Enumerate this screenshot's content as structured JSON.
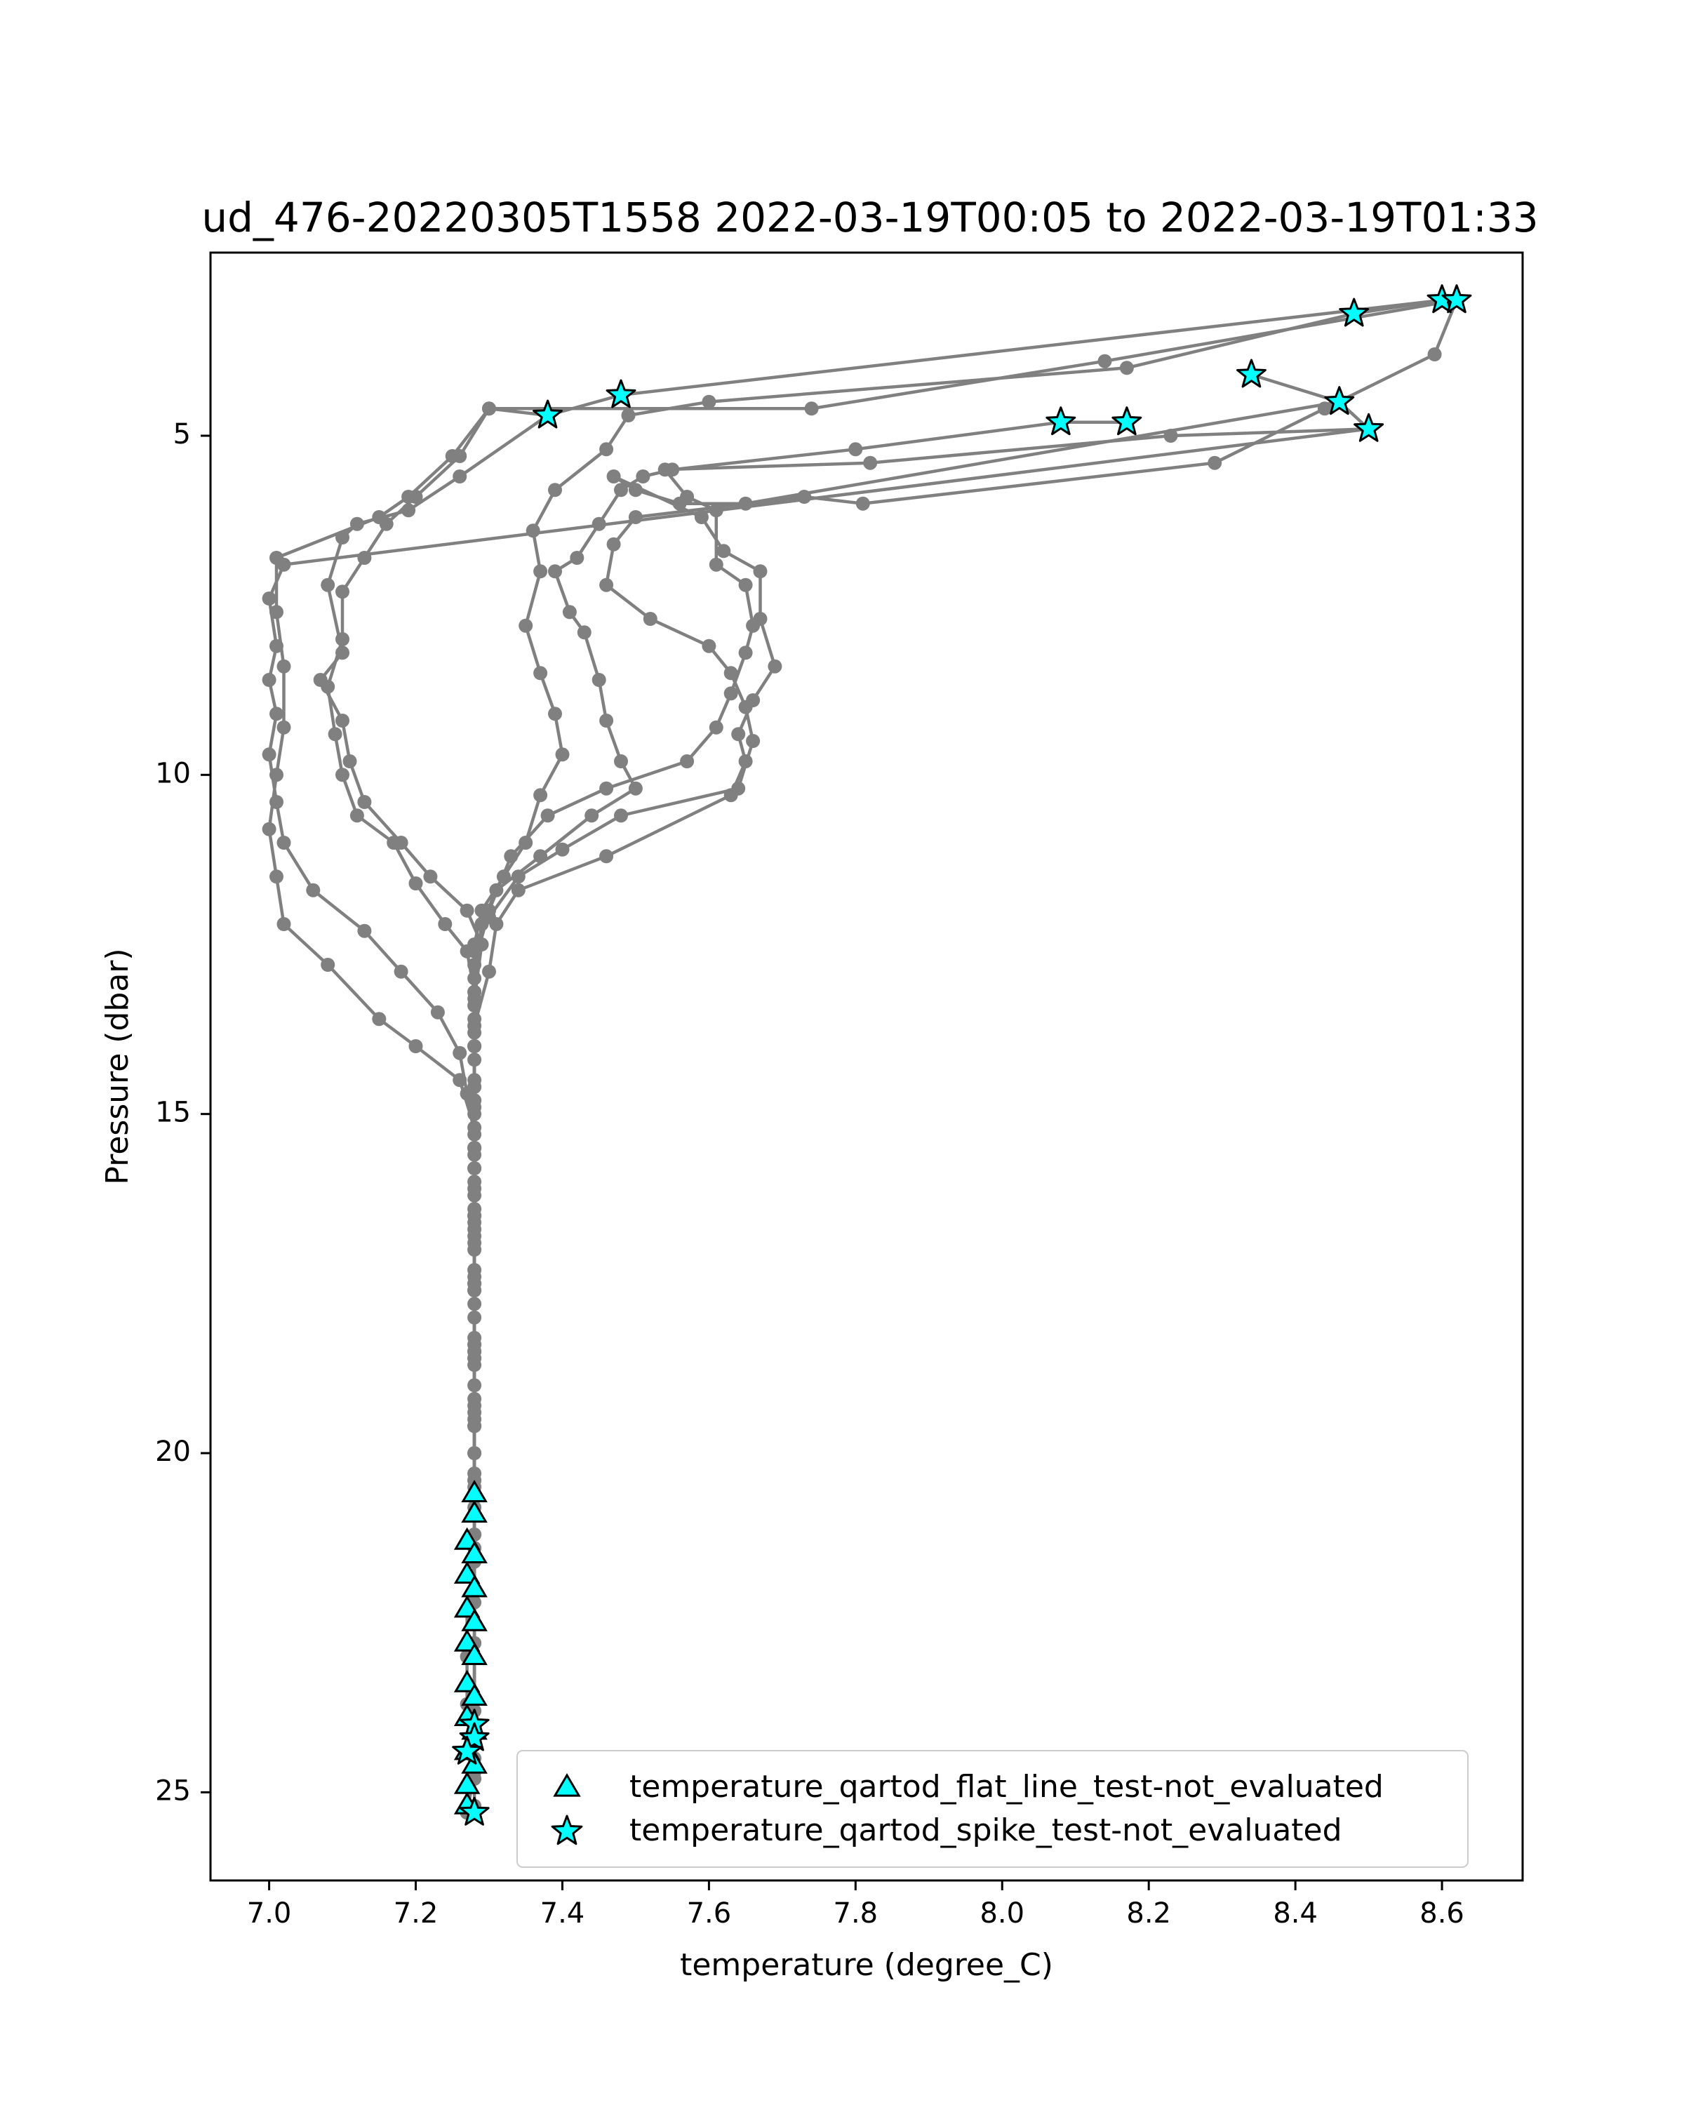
{
  "chart_data": {
    "type": "scatter",
    "title": "ud_476-20220305T1558 2022-03-19T00:05 to 2022-03-19T01:33",
    "xlabel": "temperature (degree_C)",
    "ylabel": "Pressure (dbar)",
    "xlim": [
      6.92,
      8.71
    ],
    "ylim": [
      26.3,
      2.3
    ],
    "y_inverted": true,
    "xticks": [
      7.0,
      7.2,
      7.4,
      7.6,
      7.8,
      8.0,
      8.2,
      8.4,
      8.6
    ],
    "xtick_labels": [
      "7.0",
      "7.2",
      "7.4",
      "7.6",
      "7.8",
      "8.0",
      "8.2",
      "8.4",
      "8.6"
    ],
    "yticks": [
      5,
      10,
      15,
      20,
      25
    ],
    "ytick_labels": [
      "5",
      "10",
      "15",
      "20",
      "25"
    ],
    "grid": false,
    "legend_position": "lower-right",
    "colors": {
      "profile": "#808080",
      "flag_fill": "#00ffff",
      "flag_edge": "#000000"
    },
    "profiles": [
      {
        "points": [
          [
            8.62,
            3.0
          ],
          [
            8.14,
            3.9
          ],
          [
            7.74,
            4.6
          ],
          [
            7.3,
            4.6
          ],
          [
            7.26,
            5.3
          ],
          [
            7.2,
            5.9
          ],
          [
            7.16,
            6.3
          ],
          [
            7.13,
            6.8
          ],
          [
            7.1,
            7.3
          ],
          [
            7.1,
            8.0
          ],
          [
            7.08,
            8.7
          ],
          [
            7.09,
            9.4
          ],
          [
            7.1,
            10.0
          ],
          [
            7.12,
            10.6
          ],
          [
            7.17,
            11.0
          ],
          [
            7.2,
            11.6
          ],
          [
            7.24,
            12.2
          ],
          [
            7.27,
            12.6
          ],
          [
            7.28,
            13.2
          ],
          [
            7.28,
            14.0
          ],
          [
            7.28,
            14.8
          ],
          [
            7.28,
            15.5
          ],
          [
            7.28,
            16.2
          ],
          [
            7.28,
            17.0
          ],
          [
            7.28,
            18.0
          ],
          [
            7.28,
            19.0
          ],
          [
            7.28,
            20.0
          ],
          [
            7.28,
            20.6
          ],
          [
            7.28,
            21.2
          ],
          [
            7.28,
            22.0
          ],
          [
            7.28,
            22.8
          ],
          [
            7.28,
            23.6
          ],
          [
            7.28,
            24.2
          ],
          [
            7.28,
            24.8
          ],
          [
            7.28,
            25.2
          ]
        ]
      },
      {
        "points": [
          [
            8.48,
            3.2
          ],
          [
            8.17,
            4.0
          ],
          [
            7.6,
            4.5
          ],
          [
            7.49,
            4.7
          ],
          [
            7.46,
            5.2
          ],
          [
            7.39,
            5.8
          ],
          [
            7.36,
            6.4
          ],
          [
            7.37,
            7.0
          ],
          [
            7.35,
            7.8
          ],
          [
            7.37,
            8.5
          ],
          [
            7.39,
            9.1
          ],
          [
            7.4,
            9.7
          ],
          [
            7.37,
            10.3
          ],
          [
            7.35,
            11.0
          ],
          [
            7.32,
            11.5
          ],
          [
            7.29,
            12.0
          ],
          [
            7.28,
            12.5
          ],
          [
            7.28,
            13.2
          ],
          [
            7.28,
            14.0
          ],
          [
            7.28,
            14.8
          ],
          [
            7.28,
            15.6
          ],
          [
            7.28,
            16.5
          ],
          [
            7.28,
            17.4
          ],
          [
            7.28,
            18.4
          ],
          [
            7.28,
            19.4
          ],
          [
            7.28,
            20.4
          ]
        ]
      },
      {
        "points": [
          [
            8.6,
            3.0
          ],
          [
            7.48,
            4.4
          ],
          [
            7.38,
            4.7
          ],
          [
            7.26,
            5.6
          ],
          [
            7.19,
            6.1
          ],
          [
            7.12,
            6.3
          ],
          [
            7.1,
            6.5
          ],
          [
            7.08,
            7.2
          ],
          [
            7.1,
            8.2
          ],
          [
            7.07,
            8.6
          ],
          [
            7.1,
            9.2
          ],
          [
            7.11,
            9.8
          ],
          [
            7.13,
            10.4
          ],
          [
            7.18,
            11.0
          ],
          [
            7.22,
            11.5
          ],
          [
            7.27,
            12.0
          ],
          [
            7.29,
            12.5
          ],
          [
            7.28,
            13.3
          ],
          [
            7.28,
            14.0
          ],
          [
            7.28,
            14.9
          ],
          [
            7.28,
            15.8
          ],
          [
            7.28,
            16.6
          ],
          [
            7.28,
            17.5
          ],
          [
            7.28,
            18.5
          ],
          [
            7.28,
            19.6
          ],
          [
            7.28,
            20.6
          ]
        ]
      },
      {
        "points": [
          [
            8.34,
            4.1
          ],
          [
            8.46,
            4.5
          ],
          [
            8.5,
            4.9
          ],
          [
            8.23,
            5.0
          ],
          [
            7.82,
            5.4
          ],
          [
            7.54,
            5.5
          ],
          [
            7.57,
            5.9
          ],
          [
            7.61,
            6.1
          ],
          [
            7.61,
            6.9
          ],
          [
            7.65,
            7.2
          ],
          [
            7.66,
            7.8
          ],
          [
            7.65,
            8.2
          ],
          [
            7.63,
            8.8
          ],
          [
            7.61,
            9.3
          ],
          [
            7.57,
            9.8
          ],
          [
            7.46,
            10.2
          ],
          [
            7.38,
            10.6
          ],
          [
            7.33,
            11.2
          ],
          [
            7.3,
            12.0
          ],
          [
            7.28,
            12.8
          ],
          [
            7.28,
            13.6
          ],
          [
            7.28,
            14.6
          ],
          [
            7.28,
            15.5
          ],
          [
            7.28,
            16.5
          ],
          [
            7.28,
            17.5
          ],
          [
            7.28,
            18.6
          ],
          [
            7.28,
            19.6
          ],
          [
            7.28,
            20.6
          ]
        ]
      },
      {
        "points": [
          [
            8.17,
            4.8
          ],
          [
            8.08,
            4.8
          ],
          [
            7.8,
            5.2
          ],
          [
            7.55,
            5.5
          ],
          [
            7.51,
            5.6
          ],
          [
            7.48,
            5.8
          ],
          [
            7.45,
            6.3
          ],
          [
            7.42,
            6.8
          ],
          [
            7.39,
            7.0
          ],
          [
            7.41,
            7.6
          ],
          [
            7.43,
            7.9
          ],
          [
            7.45,
            8.6
          ],
          [
            7.46,
            9.2
          ],
          [
            7.48,
            9.8
          ],
          [
            7.5,
            10.2
          ],
          [
            7.44,
            10.6
          ],
          [
            7.37,
            11.2
          ],
          [
            7.31,
            11.7
          ],
          [
            7.29,
            12.2
          ],
          [
            7.28,
            13.0
          ],
          [
            7.28,
            13.8
          ],
          [
            7.28,
            14.6
          ],
          [
            7.28,
            15.5
          ],
          [
            7.28,
            16.4
          ],
          [
            7.28,
            17.3
          ],
          [
            7.28,
            18.3
          ],
          [
            7.28,
            19.3
          ],
          [
            7.28,
            20.3
          ]
        ]
      },
      {
        "points": [
          [
            8.48,
            3.2
          ],
          [
            8.6,
            3.0
          ],
          [
            8.62,
            3.0
          ],
          [
            8.59,
            3.8
          ],
          [
            8.44,
            4.6
          ],
          [
            8.29,
            5.4
          ],
          [
            7.81,
            6.0
          ],
          [
            7.73,
            5.9
          ],
          [
            7.5,
            6.2
          ],
          [
            7.47,
            6.6
          ],
          [
            7.46,
            7.2
          ],
          [
            7.52,
            7.7
          ],
          [
            7.6,
            8.1
          ],
          [
            7.63,
            8.5
          ],
          [
            7.65,
            9.0
          ],
          [
            7.66,
            9.5
          ],
          [
            7.64,
            10.2
          ],
          [
            7.48,
            10.6
          ],
          [
            7.4,
            11.1
          ],
          [
            7.34,
            11.5
          ],
          [
            7.3,
            12.1
          ],
          [
            7.28,
            12.6
          ],
          [
            7.28,
            13.4
          ],
          [
            7.28,
            14.2
          ],
          [
            7.28,
            15.0
          ],
          [
            7.28,
            15.8
          ],
          [
            7.28,
            16.7
          ],
          [
            7.28,
            17.6
          ],
          [
            7.28,
            18.6
          ],
          [
            7.28,
            19.6
          ],
          [
            7.28,
            20.6
          ],
          [
            7.28,
            21.4
          ],
          [
            7.28,
            22.2
          ],
          [
            7.28,
            23.0
          ],
          [
            7.28,
            23.8
          ],
          [
            7.28,
            24.5
          ],
          [
            7.27,
            25.2
          ]
        ]
      },
      {
        "points": [
          [
            8.46,
            4.5
          ],
          [
            7.65,
            6.0
          ],
          [
            7.56,
            6.0
          ],
          [
            7.5,
            5.8
          ],
          [
            7.47,
            5.6
          ],
          [
            7.59,
            6.2
          ],
          [
            7.62,
            6.7
          ],
          [
            7.67,
            7.0
          ],
          [
            7.67,
            7.7
          ],
          [
            7.69,
            8.4
          ],
          [
            7.66,
            8.9
          ],
          [
            7.64,
            9.4
          ],
          [
            7.65,
            9.8
          ],
          [
            7.63,
            10.3
          ],
          [
            7.46,
            11.2
          ],
          [
            7.34,
            11.7
          ],
          [
            7.31,
            12.2
          ],
          [
            7.3,
            12.9
          ],
          [
            7.28,
            13.7
          ],
          [
            7.28,
            14.5
          ],
          [
            7.28,
            15.5
          ],
          [
            7.28,
            16.5
          ],
          [
            7.28,
            17.5
          ],
          [
            7.28,
            18.5
          ],
          [
            7.28,
            19.5
          ],
          [
            7.28,
            20.5
          ]
        ]
      },
      {
        "points": [
          [
            7.38,
            4.7
          ],
          [
            7.3,
            4.6
          ],
          [
            7.25,
            5.3
          ],
          [
            7.19,
            5.9
          ],
          [
            7.15,
            6.2
          ],
          [
            7.01,
            6.8
          ],
          [
            7.01,
            7.6
          ],
          [
            7.02,
            8.4
          ],
          [
            7.02,
            9.3
          ],
          [
            7.01,
            10.0
          ],
          [
            7.0,
            10.8
          ],
          [
            7.01,
            11.5
          ],
          [
            7.02,
            12.2
          ],
          [
            7.08,
            12.8
          ],
          [
            7.15,
            13.6
          ],
          [
            7.2,
            14.0
          ],
          [
            7.26,
            14.5
          ],
          [
            7.28,
            15.2
          ],
          [
            7.28,
            16.0
          ],
          [
            7.28,
            16.8
          ],
          [
            7.28,
            17.6
          ],
          [
            7.28,
            18.4
          ],
          [
            7.28,
            19.2
          ],
          [
            7.28,
            20.0
          ],
          [
            7.28,
            20.8
          ],
          [
            7.28,
            21.6
          ],
          [
            7.27,
            22.3
          ],
          [
            7.27,
            23.0
          ],
          [
            7.27,
            23.7
          ],
          [
            7.28,
            24.3
          ],
          [
            7.27,
            24.9
          ],
          [
            7.27,
            25.3
          ]
        ]
      },
      {
        "points": [
          [
            8.5,
            4.9
          ],
          [
            7.02,
            6.9
          ],
          [
            7.0,
            7.4
          ],
          [
            7.01,
            8.1
          ],
          [
            7.0,
            8.6
          ],
          [
            7.01,
            9.1
          ],
          [
            7.0,
            9.7
          ],
          [
            7.01,
            10.4
          ],
          [
            7.02,
            11.0
          ],
          [
            7.06,
            11.7
          ],
          [
            7.13,
            12.3
          ],
          [
            7.18,
            12.9
          ],
          [
            7.23,
            13.5
          ],
          [
            7.26,
            14.1
          ],
          [
            7.27,
            14.7
          ],
          [
            7.28,
            15.3
          ],
          [
            7.28,
            16.1
          ],
          [
            7.28,
            16.9
          ],
          [
            7.28,
            17.8
          ],
          [
            7.28,
            18.7
          ],
          [
            7.28,
            19.6
          ],
          [
            7.28,
            20.4
          ],
          [
            7.28,
            21.2
          ],
          [
            7.28,
            22.0
          ],
          [
            7.28,
            22.8
          ],
          [
            7.28,
            23.6
          ],
          [
            7.28,
            24.2
          ],
          [
            7.28,
            24.7
          ],
          [
            7.27,
            25.3
          ]
        ]
      }
    ],
    "series": [
      {
        "name": "temperature_qartod_flat_line_test-not_evaluated",
        "marker": "triangle",
        "points": [
          [
            7.28,
            20.6
          ],
          [
            7.28,
            20.9
          ],
          [
            7.27,
            21.3
          ],
          [
            7.28,
            21.5
          ],
          [
            7.27,
            21.8
          ],
          [
            7.28,
            22.0
          ],
          [
            7.27,
            22.3
          ],
          [
            7.28,
            22.5
          ],
          [
            7.27,
            22.8
          ],
          [
            7.28,
            23.0
          ],
          [
            7.27,
            23.4
          ],
          [
            7.28,
            23.6
          ],
          [
            7.27,
            23.9
          ],
          [
            7.28,
            24.1
          ],
          [
            7.27,
            24.4
          ],
          [
            7.28,
            24.6
          ],
          [
            7.27,
            24.9
          ],
          [
            7.27,
            25.2
          ]
        ]
      },
      {
        "name": "temperature_qartod_spike_test-not_evaluated",
        "marker": "star",
        "points": [
          [
            8.6,
            3.0
          ],
          [
            8.62,
            3.0
          ],
          [
            8.48,
            3.2
          ],
          [
            8.34,
            4.1
          ],
          [
            8.46,
            4.5
          ],
          [
            8.5,
            4.9
          ],
          [
            7.48,
            4.4
          ],
          [
            7.38,
            4.7
          ],
          [
            8.08,
            4.8
          ],
          [
            8.17,
            4.8
          ],
          [
            7.28,
            24.0
          ],
          [
            7.28,
            24.2
          ],
          [
            7.27,
            24.4
          ],
          [
            7.28,
            25.3
          ]
        ]
      }
    ]
  }
}
